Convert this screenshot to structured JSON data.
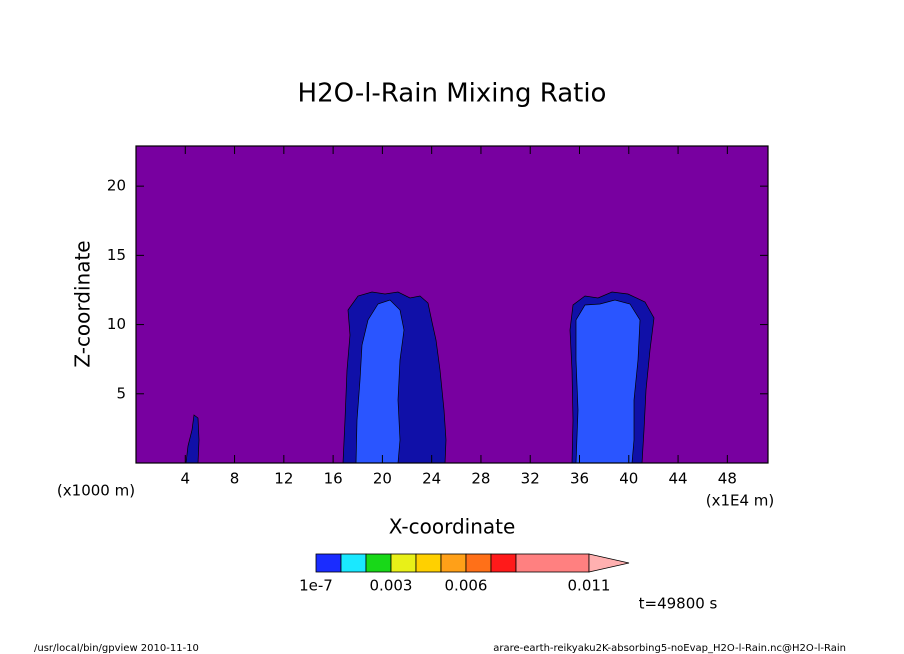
{
  "chart_data": {
    "type": "contour",
    "title": "H2O-l-Rain Mixing Ratio",
    "x_label": "X-coordinate",
    "y_label": "Z-coordinate",
    "x_unit": "(x1E4 m)",
    "y_unit": "(x1000 m)",
    "xlim": [
      0,
      51.3
    ],
    "ylim": [
      0,
      22.9
    ],
    "xticks": [
      4,
      8,
      12,
      16,
      20,
      24,
      28,
      32,
      36,
      40,
      44,
      48
    ],
    "yticks": [
      5,
      10,
      15,
      20
    ],
    "background_color": "#7800a0",
    "colorbar": {
      "colors": [
        "#1a2cff",
        "#1ae8ff",
        "#18d818",
        "#e8f018",
        "#ffd000",
        "#ffa018",
        "#ff7018",
        "#ff1a1a",
        "#ff8080",
        "#ffb0b0"
      ],
      "ticks": [
        {
          "index": 0,
          "value": 1e-07
        },
        {
          "index": 3,
          "value": 0.003
        },
        {
          "index": 6,
          "value": 0.006
        },
        {
          "index": 9,
          "value": 0.011
        }
      ]
    },
    "annotation": "t=49800 s",
    "footer_left": "/usr/local/bin/gpview  2010-11-10",
    "footer_right": "arare-earth-reikyaku2K-absorbing5-noEvap_H2O-l-Rain.nc@H2O-l-Rain"
  }
}
